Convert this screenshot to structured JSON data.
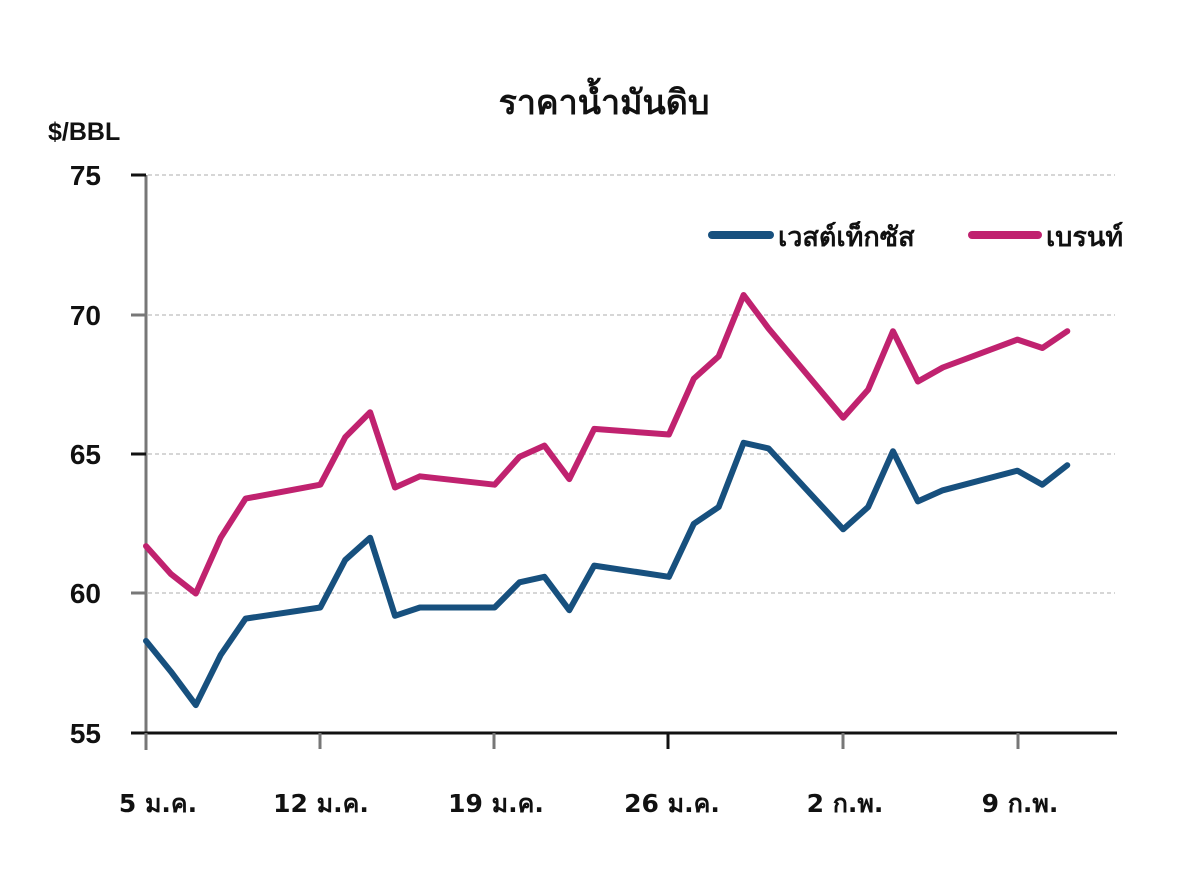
{
  "chart_data": {
    "type": "line",
    "title": "ราคาน้ำมันดิบ",
    "ylabel": "$/BBL",
    "xlabel": "",
    "ylim": [
      55,
      75
    ],
    "yticks": [
      55,
      60,
      65,
      70,
      75
    ],
    "grid": true,
    "legend_position": "top-right",
    "x_tick_labels": [
      "5 ม.ค.",
      "12 ม.ค.",
      "19 ม.ค.",
      "26 ม.ค.",
      "2 ก.พ.",
      "9 ก.พ."
    ],
    "x_tick_day_index": [
      0,
      7,
      14,
      21,
      28,
      35
    ],
    "x_day_index": [
      0,
      1,
      2,
      3,
      4,
      7,
      8,
      9,
      10,
      11,
      14,
      15,
      16,
      17,
      18,
      21,
      22,
      23,
      24,
      25,
      28,
      29,
      30,
      31,
      32,
      35,
      36,
      37
    ],
    "series": [
      {
        "name": "เวสต์เท็กซัส",
        "color": "#17507e",
        "values": [
          58.3,
          57.2,
          56.0,
          57.8,
          59.1,
          59.5,
          61.2,
          62.0,
          59.2,
          59.5,
          59.5,
          60.4,
          60.6,
          59.4,
          61.0,
          60.6,
          62.5,
          63.1,
          65.4,
          65.2,
          62.3,
          63.1,
          65.1,
          63.3,
          63.7,
          64.4,
          63.9,
          64.6
        ]
      },
      {
        "name": "เบรนท์",
        "color": "#c0226f",
        "values": [
          61.7,
          60.7,
          60.0,
          62.0,
          63.4,
          63.9,
          65.6,
          66.5,
          63.8,
          64.2,
          63.9,
          64.9,
          65.3,
          64.1,
          65.9,
          65.7,
          67.7,
          68.5,
          70.7,
          69.5,
          66.3,
          67.3,
          69.4,
          67.6,
          68.1,
          69.1,
          68.8,
          69.4
        ]
      }
    ]
  },
  "labels": {
    "title": "ราคาน้ำมันดิบ",
    "unit": "$/BBL",
    "yticks": [
      "75",
      "70",
      "65",
      "60",
      "55"
    ],
    "xticks": [
      "5 ม.ค.",
      "12 ม.ค.",
      "19 ม.ค.",
      "26 ม.ค.",
      "2 ก.พ.",
      "9 ก.พ."
    ],
    "legend": [
      "เวสต์เท็กซัส",
      "เบรนท์"
    ]
  }
}
